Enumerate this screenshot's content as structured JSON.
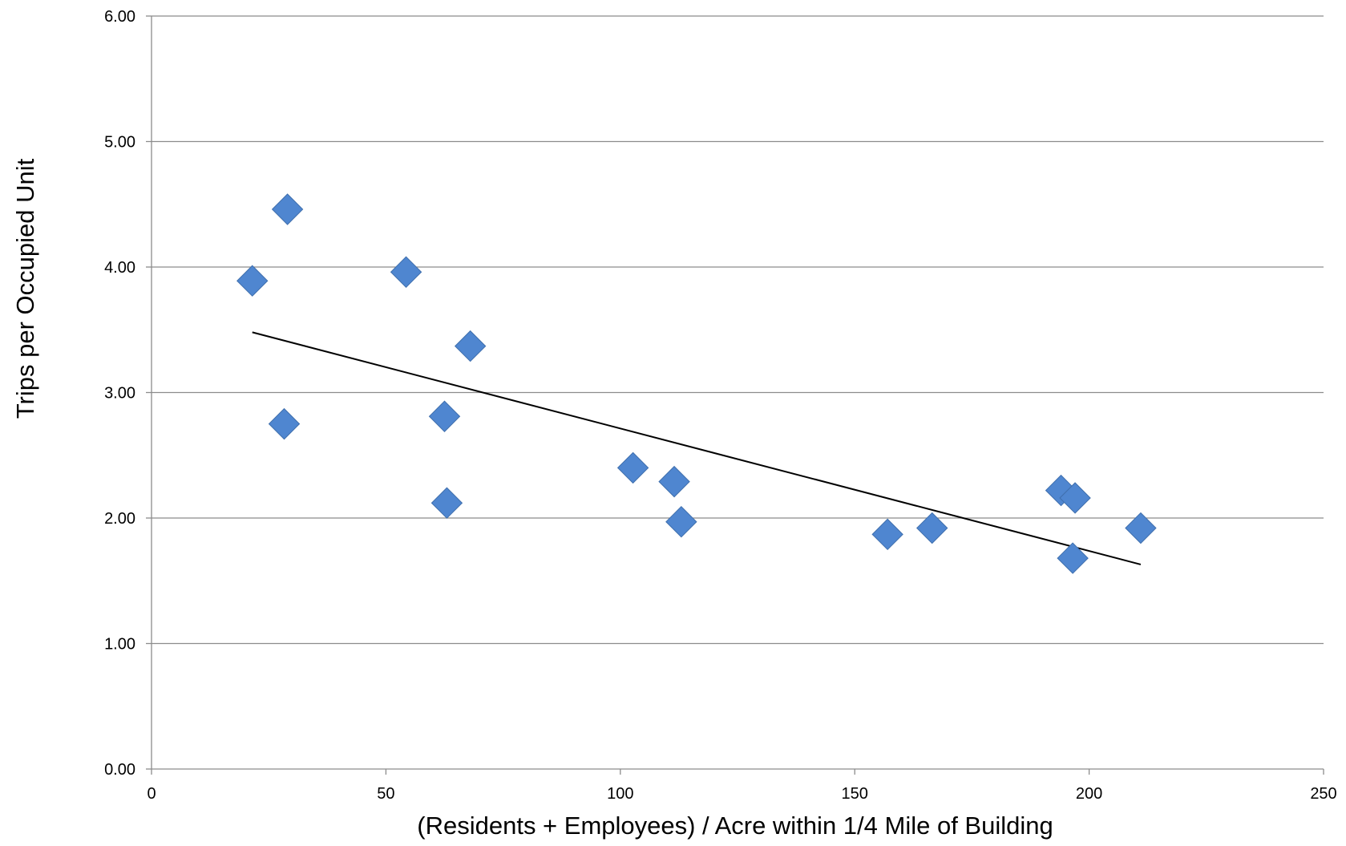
{
  "chart_data": {
    "type": "scatter",
    "title": "",
    "xlabel": "(Residents + Employees) / Acre within 1/4 Mile of Building",
    "ylabel": "Trips per  Occupied Unit",
    "xlim": [
      0,
      250
    ],
    "ylim": [
      0,
      6
    ],
    "xticks": [
      0,
      50,
      100,
      150,
      200,
      250
    ],
    "xtick_labels": [
      "0",
      "50",
      "100",
      "150",
      "200",
      "250"
    ],
    "yticks": [
      0,
      1,
      2,
      3,
      4,
      5,
      6
    ],
    "ytick_labels": [
      "0.00",
      "1.00",
      "2.00",
      "3.00",
      "4.00",
      "5.00",
      "6.00"
    ],
    "grid": {
      "horizontal": true,
      "vertical": false
    },
    "legend": "none",
    "marker": "diamond",
    "marker_color": "#4f86d0",
    "points": [
      {
        "x": 21.5,
        "y": 3.89
      },
      {
        "x": 29.0,
        "y": 4.46
      },
      {
        "x": 28.3,
        "y": 2.75
      },
      {
        "x": 54.3,
        "y": 3.96
      },
      {
        "x": 68.0,
        "y": 3.37
      },
      {
        "x": 62.5,
        "y": 2.81
      },
      {
        "x": 63.0,
        "y": 2.12
      },
      {
        "x": 102.7,
        "y": 2.4
      },
      {
        "x": 111.5,
        "y": 2.29
      },
      {
        "x": 113.0,
        "y": 1.97
      },
      {
        "x": 157.0,
        "y": 1.87
      },
      {
        "x": 166.5,
        "y": 1.92
      },
      {
        "x": 194.0,
        "y": 2.22
      },
      {
        "x": 197.0,
        "y": 2.16
      },
      {
        "x": 196.5,
        "y": 1.68
      },
      {
        "x": 211.0,
        "y": 1.92
      }
    ],
    "trendline": {
      "type": "linear",
      "from": {
        "x": 21.5,
        "y": 3.48
      },
      "to": {
        "x": 211.0,
        "y": 1.63
      },
      "color": "#000000"
    }
  }
}
